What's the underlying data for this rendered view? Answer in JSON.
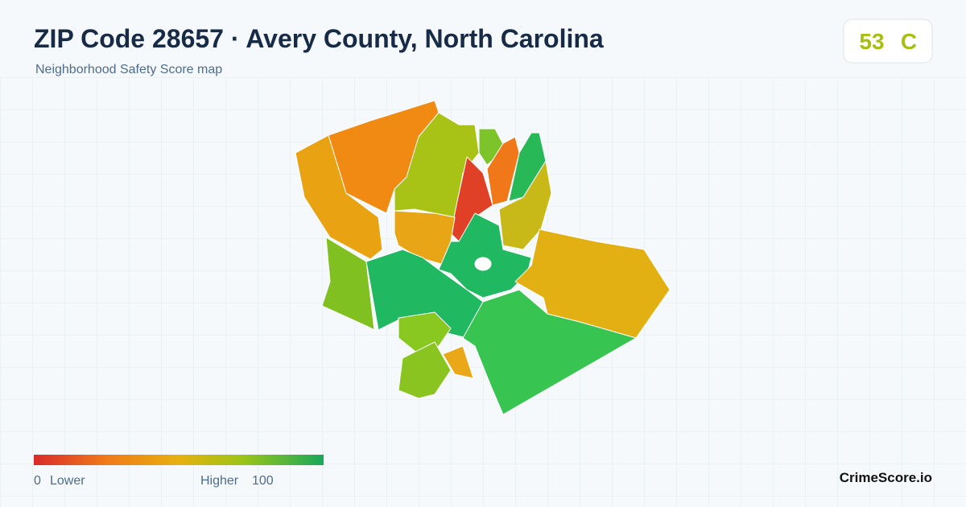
{
  "header": {
    "title": "ZIP Code 28657 · Avery County, North Carolina",
    "subtitle": "Neighborhood Safety Score map"
  },
  "score": {
    "value": "53",
    "grade": "C"
  },
  "legend": {
    "min": "0",
    "min_label": "Lower",
    "max_label": "Higher",
    "max": "100"
  },
  "brand": "CrimeScore.io"
}
